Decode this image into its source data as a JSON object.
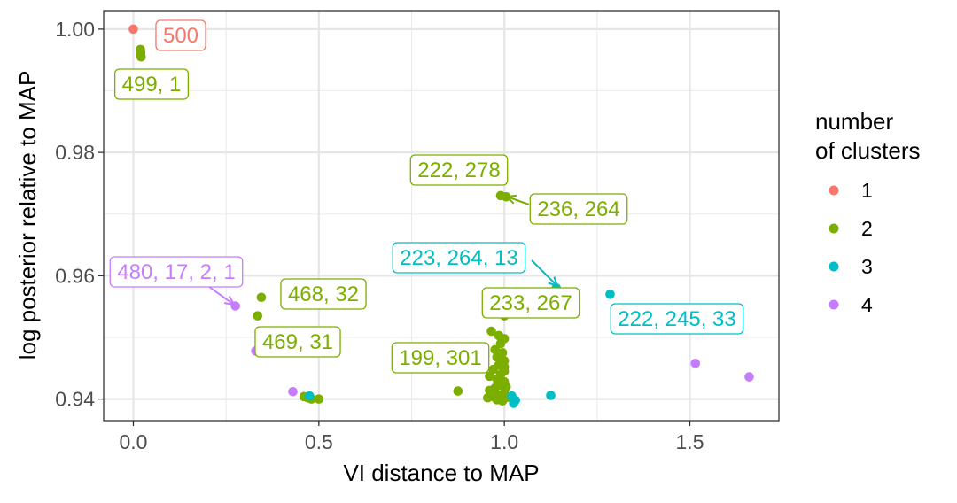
{
  "chart_data": {
    "type": "scatter",
    "title": "",
    "xlabel": "VI distance to MAP",
    "ylabel": "log posterior relative to MAP",
    "xlim": [
      -0.08,
      1.74
    ],
    "ylim": [
      0.9365,
      1.003
    ],
    "xticks": [
      0.0,
      0.5,
      1.0,
      1.5
    ],
    "xtick_labels": [
      "0.0",
      "0.5",
      "1.0",
      "1.5"
    ],
    "yticks": [
      0.94,
      0.96,
      0.98,
      1.0
    ],
    "ytick_labels": [
      "0.94",
      "0.96",
      "0.98",
      "1.00"
    ],
    "grid": true,
    "legend": {
      "title_lines": [
        "number",
        "of clusters"
      ],
      "position": "right",
      "entries": [
        {
          "label": "1",
          "color": "#F8766D"
        },
        {
          "label": "2",
          "color": "#7CAE00"
        },
        {
          "label": "3",
          "color": "#00BFC4"
        },
        {
          "label": "4",
          "color": "#C77CFF"
        }
      ]
    },
    "series": [
      {
        "name": "1",
        "color": "#F8766D",
        "points": [
          [
            0.0,
            1.0
          ]
        ]
      },
      {
        "name": "2",
        "color": "#7CAE00",
        "points": [
          [
            0.019,
            0.9967
          ],
          [
            0.02,
            0.9962
          ],
          [
            0.02,
            0.9958
          ],
          [
            0.021,
            0.9955
          ],
          [
            0.99,
            0.973
          ],
          [
            1.005,
            0.9728
          ],
          [
            0.345,
            0.9565
          ],
          [
            0.335,
            0.9535
          ],
          [
            1.0,
            0.9535
          ],
          [
            0.47,
            0.9402
          ],
          [
            0.48,
            0.94
          ],
          [
            0.5,
            0.94
          ],
          [
            0.46,
            0.9404
          ],
          [
            0.875,
            0.9413
          ],
          [
            0.965,
            0.951
          ],
          [
            0.985,
            0.9503
          ],
          [
            1.0,
            0.9498
          ],
          [
            0.99,
            0.949
          ],
          [
            0.975,
            0.948
          ],
          [
            0.995,
            0.9475
          ],
          [
            0.98,
            0.9468
          ],
          [
            1.0,
            0.9462
          ],
          [
            0.985,
            0.9455
          ],
          [
            0.97,
            0.9448
          ],
          [
            1.0,
            0.9445
          ],
          [
            0.99,
            0.944
          ],
          [
            0.96,
            0.9437
          ],
          [
            0.98,
            0.9432
          ],
          [
            1.0,
            0.9428
          ],
          [
            0.99,
            0.9422
          ],
          [
            0.975,
            0.9418
          ],
          [
            0.96,
            0.9414
          ],
          [
            1.0,
            0.941
          ],
          [
            0.985,
            0.9406
          ],
          [
            0.97,
            0.9404
          ],
          [
            0.955,
            0.9402
          ],
          [
            1.0,
            0.9401
          ],
          [
            0.99,
            0.94
          ],
          [
            0.98,
            0.9399
          ],
          [
            1.01,
            0.9403
          ],
          [
            0.995,
            0.9397
          ],
          [
            0.965,
            0.9408
          ],
          [
            1.005,
            0.942
          ],
          [
            1.0,
            0.9452
          ],
          [
            0.99,
            0.947
          ]
        ]
      },
      {
        "name": "3",
        "color": "#00BFC4",
        "points": [
          [
            1.14,
            0.958
          ],
          [
            1.285,
            0.957
          ],
          [
            0.405,
            0.9478
          ],
          [
            0.475,
            0.9405
          ],
          [
            1.125,
            0.9406
          ],
          [
            1.02,
            0.9405
          ],
          [
            1.03,
            0.9398
          ],
          [
            1.025,
            0.9393
          ]
        ]
      },
      {
        "name": "4",
        "color": "#C77CFF",
        "points": [
          [
            0.275,
            0.9551
          ],
          [
            0.33,
            0.9478
          ],
          [
            0.43,
            0.9412
          ],
          [
            1.515,
            0.9458
          ],
          [
            1.66,
            0.9436
          ]
        ]
      }
    ],
    "annotations": [
      {
        "text": "500",
        "color": "#F8766D"
      },
      {
        "text": "499, 1",
        "color": "#7CAE00"
      },
      {
        "text": "222, 278",
        "color": "#7CAE00"
      },
      {
        "text": "236, 264",
        "color": "#7CAE00"
      },
      {
        "text": "223, 264, 13",
        "color": "#00BFC4"
      },
      {
        "text": "480, 17, 2, 1",
        "color": "#C77CFF"
      },
      {
        "text": "468, 32",
        "color": "#7CAE00"
      },
      {
        "text": "233, 267",
        "color": "#7CAE00"
      },
      {
        "text": "222, 245, 33",
        "color": "#00BFC4"
      },
      {
        "text": "469, 31",
        "color": "#7CAE00"
      },
      {
        "text": "199, 301",
        "color": "#7CAE00"
      }
    ]
  }
}
